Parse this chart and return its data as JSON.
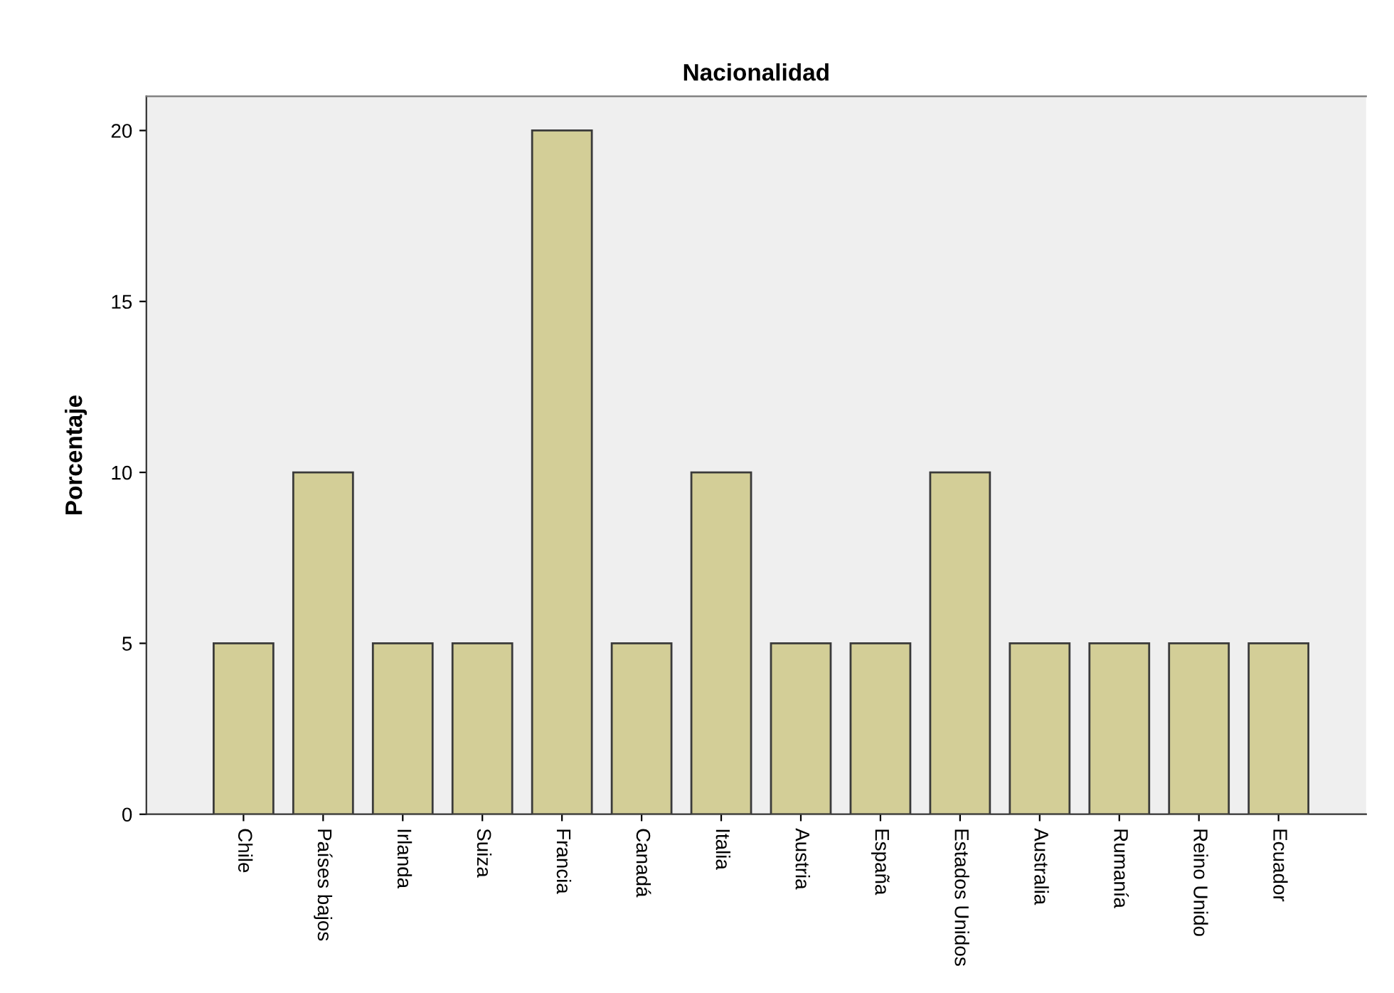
{
  "chart_data": {
    "type": "bar",
    "title": "Nacionalidad",
    "ylabel": "Porcentaje",
    "categories": [
      "Chile",
      "Países bajos",
      "Irlanda",
      "Suiza",
      "Francia",
      "Canadá",
      "Italia",
      "Austria",
      "España",
      "Estados Unidos",
      "Australia",
      "Rumanía",
      "Reino Unido",
      "Ecuador"
    ],
    "values": [
      5,
      10,
      5,
      5,
      20,
      5,
      10,
      5,
      5,
      10,
      5,
      5,
      5,
      5
    ],
    "color": "#d3ce97",
    "ylim": [
      0,
      21
    ],
    "yticks": [
      0,
      5,
      10,
      15,
      20
    ],
    "grid": false,
    "legend": false
  }
}
